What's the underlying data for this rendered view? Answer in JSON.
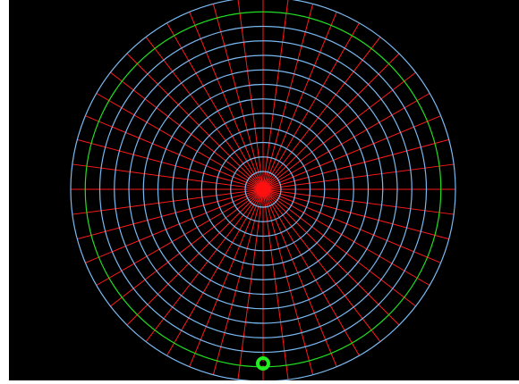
{
  "polar_grid": {
    "background_color": "#000000",
    "ring_color": "#7ab8f0",
    "spoke_color": "#ff1a1a",
    "highlight_ring_color": "#22dd22",
    "center_dot_color": "#ff1010",
    "marker_color": "#22ee22",
    "ring_count": 13,
    "highlight_ring_index": 11,
    "spoke_count": 48
  }
}
